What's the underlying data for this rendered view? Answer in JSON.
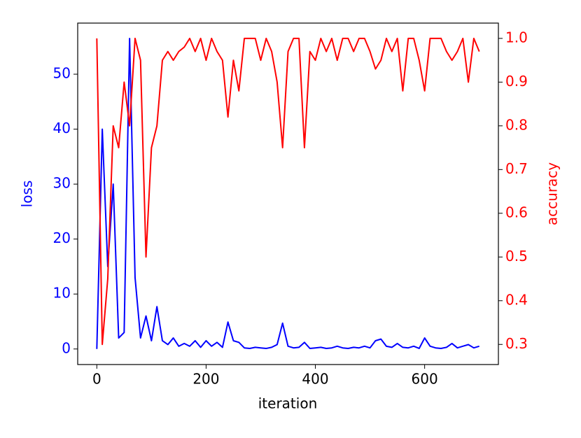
{
  "chart_data": {
    "type": "line",
    "x_label": "iteration",
    "y_label": "loss",
    "y2_label": "accuracy",
    "x": [
      0,
      10,
      20,
      30,
      40,
      50,
      60,
      70,
      80,
      90,
      100,
      110,
      120,
      130,
      140,
      150,
      160,
      170,
      180,
      190,
      200,
      210,
      220,
      230,
      240,
      250,
      260,
      270,
      280,
      290,
      300,
      310,
      320,
      330,
      340,
      350,
      360,
      370,
      380,
      390,
      400,
      410,
      420,
      430,
      440,
      450,
      460,
      470,
      480,
      490,
      500,
      510,
      520,
      530,
      540,
      550,
      560,
      570,
      580,
      590,
      600,
      610,
      620,
      630,
      640,
      650,
      660,
      670,
      680,
      690,
      700
    ],
    "series": [
      {
        "name": "loss",
        "color": "#0000ff",
        "axis": "y",
        "values": [
          0,
          40,
          15,
          30,
          2,
          3,
          56.5,
          13,
          2,
          6,
          1.5,
          7.7,
          1.5,
          0.8,
          2,
          0.5,
          1,
          0.5,
          1.5,
          0.3,
          1.5,
          0.5,
          1.2,
          0.3,
          4.9,
          1.5,
          1.2,
          0.2,
          0.1,
          0.3,
          0.2,
          0.1,
          0.3,
          0.8,
          4.7,
          0.5,
          0.2,
          0.3,
          1.2,
          0.1,
          0.2,
          0.3,
          0.1,
          0.2,
          0.5,
          0.2,
          0.1,
          0.3,
          0.2,
          0.5,
          0.2,
          1.5,
          1.8,
          0.5,
          0.3,
          1,
          0.3,
          0.2,
          0.5,
          0.1,
          2,
          0.5,
          0.2,
          0.1,
          0.3,
          1,
          0.2,
          0.5,
          0.8,
          0.2,
          0.5
        ]
      },
      {
        "name": "accuracy",
        "color": "#ff0000",
        "axis": "y2",
        "values": [
          1.0,
          0.3,
          0.45,
          0.8,
          0.75,
          0.9,
          0.8,
          1.0,
          0.95,
          0.5,
          0.75,
          0.8,
          0.95,
          0.97,
          0.95,
          0.97,
          0.98,
          1.0,
          0.97,
          1.0,
          0.95,
          1.0,
          0.97,
          0.95,
          0.82,
          0.95,
          0.88,
          1.0,
          1.0,
          1.0,
          0.95,
          1.0,
          0.97,
          0.9,
          0.75,
          0.97,
          1.0,
          1.0,
          0.75,
          0.97,
          0.95,
          1.0,
          0.97,
          1.0,
          0.95,
          1.0,
          1.0,
          0.97,
          1.0,
          1.0,
          0.97,
          0.93,
          0.95,
          1.0,
          0.97,
          1.0,
          0.88,
          1.0,
          1.0,
          0.95,
          0.88,
          1.0,
          1.0,
          1.0,
          0.97,
          0.95,
          0.97,
          1.0,
          0.9,
          1.0,
          0.97
        ]
      }
    ],
    "xlim": [
      -35,
      735
    ],
    "xticks": [
      0,
      200,
      400,
      600
    ],
    "ylim": [
      -2.83,
      59.3
    ],
    "yticks": [
      0,
      10,
      20,
      30,
      40,
      50
    ],
    "y2lim": [
      0.254,
      1.035
    ],
    "y2ticks": [
      0.3,
      0.4,
      0.5,
      0.6,
      0.7,
      0.8,
      0.9,
      {
        "value": 1,
        "label": "1.0"
      }
    ]
  }
}
